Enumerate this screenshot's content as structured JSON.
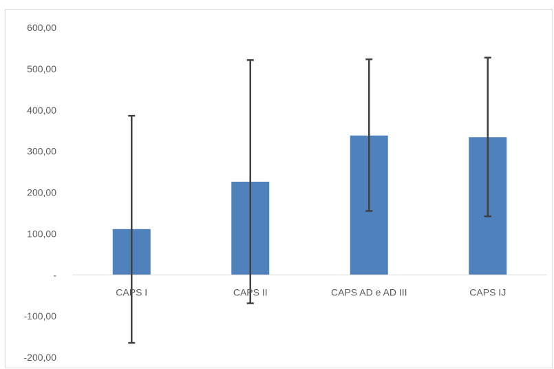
{
  "chart_data": {
    "type": "bar",
    "title": "",
    "xlabel": "",
    "ylabel": "",
    "categories": [
      "CAPS I",
      "CAPS II",
      "CAPS AD e AD III",
      "CAPS IJ"
    ],
    "values": [
      111,
      226,
      338,
      334
    ],
    "error_bars": [
      {
        "low": -165,
        "high": 386
      },
      {
        "low": -69,
        "high": 521
      },
      {
        "low": 155,
        "high": 523
      },
      {
        "low": 142,
        "high": 527
      }
    ],
    "ylim": [
      -200,
      600
    ],
    "y_ticks": [
      600,
      500,
      400,
      300,
      200,
      100,
      0,
      -100,
      -200
    ],
    "y_tick_labels": [
      "600,00",
      "500,00",
      "400,00",
      "300,00",
      "200,00",
      "100,00",
      "-",
      "-100,00",
      "-200,00"
    ],
    "grid": false,
    "legend": "none",
    "colors": {
      "bar": "#4f81bd",
      "error_bar": "#404040",
      "axis": "#d9d9d9",
      "text": "#595959"
    }
  }
}
